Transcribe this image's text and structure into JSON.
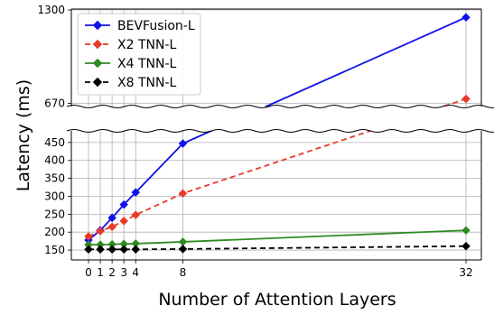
{
  "chart_data": {
    "type": "line",
    "title": "",
    "xlabel": "Number of Attention Layers",
    "ylabel": "Latency (ms)",
    "x": [
      0,
      1,
      2,
      3,
      4,
      8,
      32
    ],
    "x_tick_labels": [
      "0",
      "1",
      "2",
      "3",
      "4",
      "8",
      "32"
    ],
    "y_tick_labels_lower": [
      "150",
      "200",
      "250",
      "300",
      "350",
      "400",
      "450"
    ],
    "y_tick_labels_upper": [
      "670",
      "1300"
    ],
    "y_axis_break": [
      500,
      600
    ],
    "ylim": [
      120,
      1300
    ],
    "grid": true,
    "legend_position": "top-left",
    "series": [
      {
        "name": "BEVFusion-L",
        "color": "#1010e8",
        "linestyle": "solid",
        "marker": "diamond",
        "values": [
          178,
          205,
          240,
          277,
          311,
          447,
          1250
        ]
      },
      {
        "name": "X2 TNN-L",
        "color": "#e8392b",
        "linestyle": "dashed",
        "marker": "diamond",
        "values": [
          188,
          203,
          215,
          231,
          248,
          308,
          700
        ]
      },
      {
        "name": "X4 TNN-L",
        "color": "#2e8b23",
        "linestyle": "solid",
        "marker": "diamond",
        "values": [
          165,
          165,
          166,
          167,
          168,
          173,
          205
        ]
      },
      {
        "name": "X8 TNN-L",
        "color": "#000000",
        "linestyle": "dashed",
        "marker": "diamond",
        "values": [
          152,
          152,
          152,
          152,
          152,
          153,
          161
        ]
      }
    ]
  }
}
